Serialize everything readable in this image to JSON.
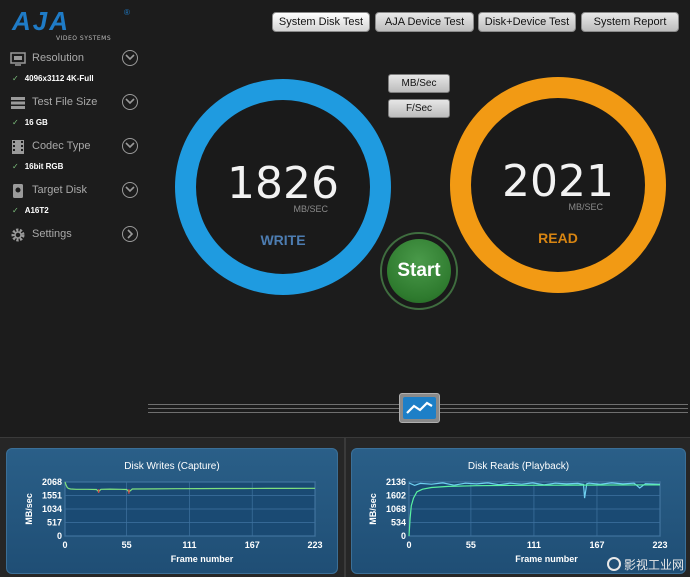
{
  "logo": {
    "text": "AJA",
    "subtitle": "VIDEO SYSTEMS",
    "reg": "®"
  },
  "top_tabs": [
    {
      "label": "System Disk Test"
    },
    {
      "label": "AJA Device Test"
    },
    {
      "label": "Disk+Device Test"
    },
    {
      "label": "System Report"
    }
  ],
  "sidebar": {
    "items": [
      {
        "label": "Resolution",
        "value": "4096x3112 4K-Full",
        "icon": "monitor-icon"
      },
      {
        "label": "Test File Size",
        "value": "16 GB",
        "icon": "stack-icon"
      },
      {
        "label": "Codec Type",
        "value": "16bit RGB",
        "icon": "film-icon"
      },
      {
        "label": "Target Disk",
        "value": "A16T2",
        "icon": "disk-icon"
      },
      {
        "label": "Settings",
        "value": "",
        "icon": "gear-icon"
      }
    ],
    "check": "✓"
  },
  "units": {
    "mb_label": "MB/Sec",
    "f_label": "F/Sec"
  },
  "write": {
    "value": "1826",
    "unit": "MB/SEC",
    "label": "WRITE",
    "color": "#1f9be0"
  },
  "read": {
    "value": "2021",
    "unit": "MB/SEC",
    "label": "READ",
    "color": "#f29a14"
  },
  "start": {
    "label": "Start"
  },
  "chart_data": [
    {
      "type": "line",
      "title": "Disk Writes (Capture)",
      "xlabel": "Frame number",
      "ylabel": "MB/sec",
      "xticks": [
        0,
        55,
        111,
        167,
        223
      ],
      "yticks": [
        0,
        517,
        1034,
        1551,
        2068
      ],
      "xlim": [
        0,
        223
      ],
      "ylim": [
        0,
        2068
      ],
      "series": [
        {
          "color": "#7ee07e",
          "x": [
            0,
            1,
            2,
            3,
            5,
            10,
            20,
            28,
            30,
            32,
            40,
            50,
            55,
            57,
            60,
            80,
            100,
            120,
            140,
            160,
            180,
            200,
            223
          ],
          "y": [
            2068,
            1950,
            1860,
            1820,
            1800,
            1790,
            1790,
            1780,
            1700,
            1790,
            1795,
            1790,
            1780,
            1690,
            1800,
            1805,
            1810,
            1815,
            1818,
            1820,
            1822,
            1824,
            1826
          ]
        },
        {
          "color": "#d44a4a",
          "x": [
            30,
            30,
            57,
            57
          ],
          "y": [
            1790,
            1650,
            1790,
            1620
          ]
        }
      ]
    },
    {
      "type": "line",
      "title": "Disk Reads (Playback)",
      "xlabel": "Frame number",
      "ylabel": "MB/sec",
      "xticks": [
        0,
        55,
        111,
        167,
        223
      ],
      "yticks": [
        0,
        534,
        1068,
        1602,
        2136
      ],
      "xlim": [
        0,
        223
      ],
      "ylim": [
        0,
        2136
      ],
      "series": [
        {
          "color": "#6fd0f0",
          "x": [
            0,
            5,
            10,
            20,
            30,
            40,
            50,
            60,
            70,
            80,
            90,
            100,
            110,
            120,
            130,
            140,
            150,
            155,
            156,
            158,
            160,
            170,
            180,
            190,
            200,
            205,
            210,
            223
          ],
          "y": [
            2100,
            2000,
            2080,
            2050,
            2100,
            2010,
            2090,
            2060,
            2100,
            2030,
            2090,
            2050,
            2100,
            2020,
            2090,
            2060,
            2080,
            2040,
            1500,
            2070,
            2090,
            2050,
            2100,
            2060,
            2090,
            1900,
            2070,
            2050
          ]
        },
        {
          "color": "#5af2a2",
          "x": [
            0,
            1,
            2,
            4,
            7,
            12,
            20,
            35,
            60,
            100,
            150,
            223
          ],
          "y": [
            0,
            700,
            1200,
            1500,
            1750,
            1850,
            1920,
            1960,
            1990,
            2005,
            2015,
            2021
          ]
        }
      ]
    }
  ],
  "watermark": {
    "text": "影视工业网"
  }
}
